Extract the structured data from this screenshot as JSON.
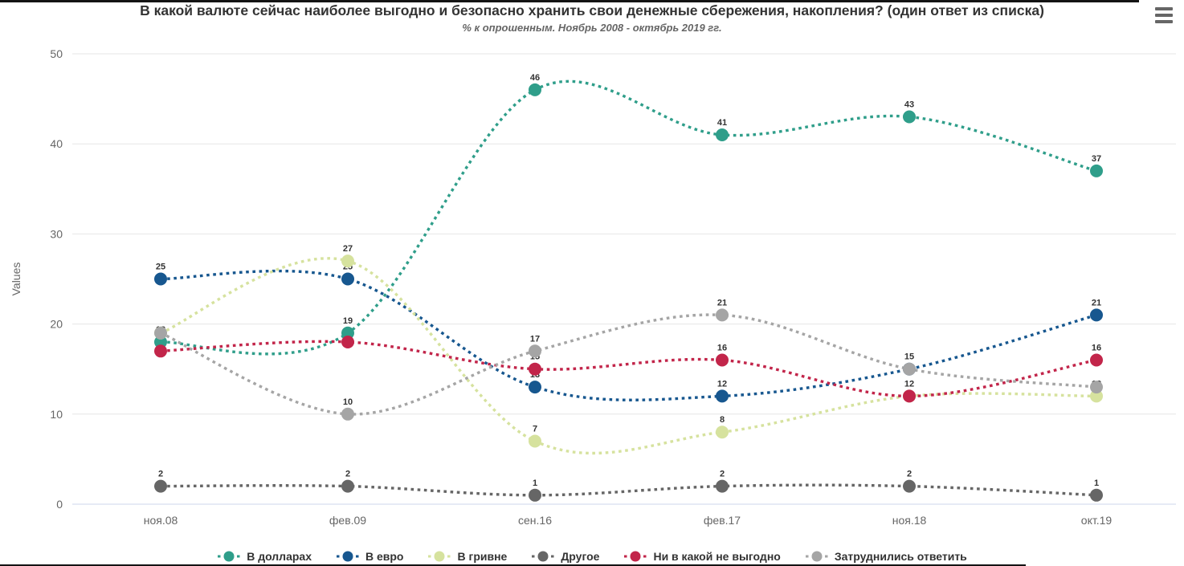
{
  "header": {
    "title": "В какой валюте сейчас наиболее выгодно и безопасно хранить свои денежные сбережения, накопления? (один ответ из списка)",
    "subtitle": "% к опрошенным. Ноябрь 2008 - октябрь 2019 гг."
  },
  "chart_data": {
    "type": "line",
    "line_style": "dotted-spline-with-markers",
    "title": "В какой валюте сейчас наиболее выгодно и безопасно хранить свои денежные сбережения, накопления? (один ответ из списка)",
    "subtitle": "% к опрошенным. Ноябрь 2008 - октябрь 2019 гг.",
    "categories": [
      "ноя.08",
      "фев.09",
      "сен.16",
      "фев.17",
      "ноя.18",
      "окт.19"
    ],
    "series": [
      {
        "name": "В долларах",
        "color": "#2f9e8a",
        "values": [
          18,
          19,
          46,
          41,
          43,
          37
        ],
        "labels_shown": [
          true,
          true,
          true,
          true,
          true,
          true
        ]
      },
      {
        "name": "В евро",
        "color": "#17578f",
        "values": [
          25,
          25,
          13,
          12,
          15,
          21
        ],
        "labels_shown": [
          true,
          true,
          true,
          true,
          true,
          true
        ]
      },
      {
        "name": "В гривне",
        "color": "#d6e29e",
        "values": [
          19,
          27,
          7,
          8,
          12,
          12
        ],
        "labels_shown": [
          false,
          true,
          true,
          true,
          false,
          true
        ]
      },
      {
        "name": "Другое",
        "color": "#666666",
        "values": [
          2,
          2,
          1,
          2,
          2,
          1
        ],
        "labels_shown": [
          true,
          true,
          true,
          true,
          true,
          true
        ]
      },
      {
        "name": "Ни в какой не выгодно",
        "color": "#c2254a",
        "values": [
          17,
          18,
          15,
          16,
          12,
          16
        ],
        "labels_shown": [
          false,
          false,
          true,
          true,
          true,
          true
        ]
      },
      {
        "name": "Затруднились ответить",
        "color": "#a5a5a5",
        "values": [
          19,
          10,
          17,
          21,
          15,
          13
        ],
        "labels_shown": [
          false,
          true,
          true,
          true,
          false,
          false
        ]
      }
    ],
    "xlabel": "",
    "ylabel": "Values",
    "ylim": [
      0,
      50
    ],
    "yticks": [
      0,
      10,
      20,
      30,
      40,
      50
    ],
    "grid": "horizontal",
    "legend_position": "bottom"
  }
}
